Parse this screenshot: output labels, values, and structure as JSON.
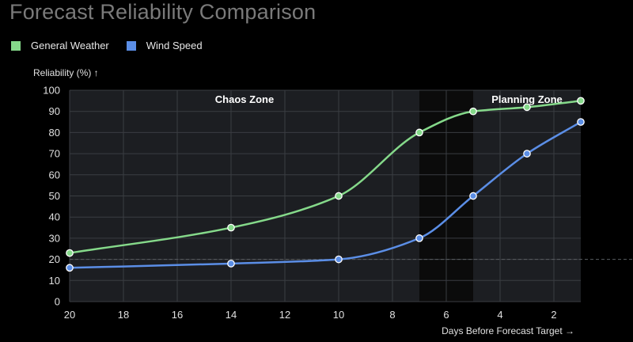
{
  "chart_data": {
    "type": "line",
    "title": "Forecast Reliability Comparison",
    "xlabel": "Days Before Forecast Target →",
    "ylabel": "Reliability (%) ↑",
    "xlim": [
      20,
      1
    ],
    "ylim": [
      0,
      100
    ],
    "x_reversed": true,
    "x_ticks": [
      20,
      18,
      16,
      14,
      12,
      10,
      8,
      6,
      4,
      2
    ],
    "y_ticks": [
      0,
      10,
      20,
      30,
      40,
      50,
      60,
      70,
      80,
      90,
      100
    ],
    "grid": true,
    "legend_position": "top-left",
    "reference_line": {
      "y": 20,
      "style": "dashed"
    },
    "zones": [
      {
        "label": "Chaos Zone",
        "x_from": 20,
        "x_to": 7,
        "color": "#1c1e22"
      },
      {
        "label": "",
        "x_from": 7,
        "x_to": 5,
        "color": "#0b0b0b"
      },
      {
        "label": "Planning Zone",
        "x_from": 5,
        "x_to": 1,
        "color": "#1c1e22"
      }
    ],
    "series": [
      {
        "name": "General Weather",
        "color": "#85d98a",
        "x": [
          20,
          14,
          10,
          7,
          5,
          3,
          1
        ],
        "y": [
          23,
          35,
          50,
          80,
          90,
          92,
          95
        ]
      },
      {
        "name": "Wind Speed",
        "color": "#5b8ee6",
        "x": [
          20,
          14,
          10,
          7,
          5,
          3,
          1
        ],
        "y": [
          16,
          18,
          20,
          30,
          50,
          70,
          85
        ]
      }
    ]
  }
}
